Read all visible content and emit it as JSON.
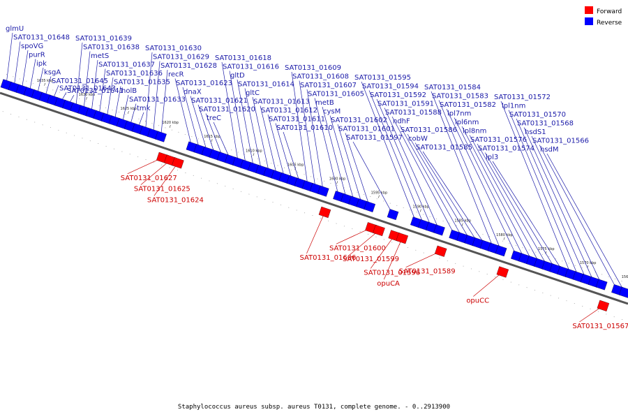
{
  "legend": {
    "forward_label": "Forward",
    "reverse_label": "Reverse",
    "forward_color": "#ff0000",
    "reverse_color": "#0000ff"
  },
  "caption": "Staphylococcus aureus subsp. aureus T0131, complete genome. - 0..2913900",
  "scale_ticks": [
    "1635 kbp",
    "1630 kbp",
    "1625 kbp",
    "1620 kbp",
    "1615 kbp",
    "1610 kbp",
    "1605 kbp",
    "1600 kbp",
    "1595 kbp",
    "1590 kbp",
    "1585 kbp",
    "1580 kbp",
    "1575 kbp",
    "1570 kbp",
    "1565 kbp"
  ],
  "genes": [
    {
      "label": "glmU",
      "strand": "reverse"
    },
    {
      "label": "SAT0131_01648",
      "strand": "reverse"
    },
    {
      "label": "spoVG",
      "strand": "reverse"
    },
    {
      "label": "purR",
      "strand": "reverse"
    },
    {
      "label": "ipk",
      "strand": "reverse"
    },
    {
      "label": "ksgA",
      "strand": "reverse"
    },
    {
      "label": "SAT0131_01645",
      "strand": "reverse"
    },
    {
      "label": "SAT0131_01643",
      "strand": "reverse"
    },
    {
      "label": "SAT0131_01641",
      "strand": "reverse"
    },
    {
      "label": "SAT0131_01639",
      "strand": "reverse"
    },
    {
      "label": "SAT0131_01638",
      "strand": "reverse"
    },
    {
      "label": "metS",
      "strand": "reverse"
    },
    {
      "label": "SAT0131_01637",
      "strand": "reverse"
    },
    {
      "label": "SAT0131_01636",
      "strand": "reverse"
    },
    {
      "label": "SAT0131_01635",
      "strand": "reverse"
    },
    {
      "label": "holB",
      "strand": "reverse"
    },
    {
      "label": "SAT0131_01633",
      "strand": "reverse"
    },
    {
      "label": "tmk",
      "strand": "reverse"
    },
    {
      "label": "SAT0131_01630",
      "strand": "reverse"
    },
    {
      "label": "SAT0131_01629",
      "strand": "reverse"
    },
    {
      "label": "SAT0131_01628",
      "strand": "reverse"
    },
    {
      "label": "SAT0131_01627",
      "strand": "forward"
    },
    {
      "label": "SAT0131_01625",
      "strand": "forward"
    },
    {
      "label": "SAT0131_01624",
      "strand": "forward"
    },
    {
      "label": "recR",
      "strand": "reverse"
    },
    {
      "label": "SAT0131_01623",
      "strand": "reverse"
    },
    {
      "label": "dnaX",
      "strand": "reverse"
    },
    {
      "label": "SAT0131_01621",
      "strand": "reverse"
    },
    {
      "label": "SAT0131_01620",
      "strand": "reverse"
    },
    {
      "label": "treC",
      "strand": "reverse"
    },
    {
      "label": "SAT0131_01618",
      "strand": "reverse"
    },
    {
      "label": "SAT0131_01616",
      "strand": "reverse"
    },
    {
      "label": "gltD",
      "strand": "reverse"
    },
    {
      "label": "SAT0131_01614",
      "strand": "reverse"
    },
    {
      "label": "gltC",
      "strand": "reverse"
    },
    {
      "label": "SAT0131_01613",
      "strand": "reverse"
    },
    {
      "label": "SAT0131_01612",
      "strand": "reverse"
    },
    {
      "label": "SAT0131_01611",
      "strand": "reverse"
    },
    {
      "label": "SAT0131_01610",
      "strand": "reverse"
    },
    {
      "label": "SAT0131_01609",
      "strand": "reverse"
    },
    {
      "label": "SAT0131_01608",
      "strand": "reverse"
    },
    {
      "label": "SAT0131_01607",
      "strand": "reverse"
    },
    {
      "label": "SAT0131_01606",
      "strand": "forward"
    },
    {
      "label": "SAT0131_01605",
      "strand": "reverse"
    },
    {
      "label": "metB",
      "strand": "reverse"
    },
    {
      "label": "cysM",
      "strand": "reverse"
    },
    {
      "label": "SAT0131_01602",
      "strand": "reverse"
    },
    {
      "label": "SAT0131_01601",
      "strand": "reverse"
    },
    {
      "label": "SAT0131_01600",
      "strand": "forward"
    },
    {
      "label": "SAT0131_01599",
      "strand": "forward"
    },
    {
      "label": "SAT0131_01597",
      "strand": "reverse"
    },
    {
      "label": "SAT0131_01596",
      "strand": "forward"
    },
    {
      "label": "opuCA",
      "strand": "forward"
    },
    {
      "label": "SAT0131_01595",
      "strand": "reverse"
    },
    {
      "label": "SAT0131_01594",
      "strand": "reverse"
    },
    {
      "label": "SAT0131_01592",
      "strand": "reverse"
    },
    {
      "label": "SAT0131_01591",
      "strand": "reverse"
    },
    {
      "label": "SAT0131_01589",
      "strand": "forward"
    },
    {
      "label": "SAT0131_01588",
      "strand": "reverse"
    },
    {
      "label": "ndhF",
      "strand": "reverse"
    },
    {
      "label": "SAT0131_01586",
      "strand": "reverse"
    },
    {
      "label": "cobW",
      "strand": "reverse"
    },
    {
      "label": "SAT0131_01585",
      "strand": "reverse"
    },
    {
      "label": "SAT0131_01584",
      "strand": "reverse"
    },
    {
      "label": "SAT0131_01583",
      "strand": "reverse"
    },
    {
      "label": "opuCC",
      "strand": "forward"
    },
    {
      "label": "SAT0131_01582",
      "strand": "reverse"
    },
    {
      "label": "lpl7nm",
      "strand": "reverse"
    },
    {
      "label": "lpl6nm",
      "strand": "reverse"
    },
    {
      "label": "lpl8nm",
      "strand": "reverse"
    },
    {
      "label": "SAT0131_01576",
      "strand": "reverse"
    },
    {
      "label": "SAT0131_01574",
      "strand": "reverse"
    },
    {
      "label": "lpl3",
      "strand": "reverse"
    },
    {
      "label": "SAT0131_01572",
      "strand": "reverse"
    },
    {
      "label": "lpl1nm",
      "strand": "reverse"
    },
    {
      "label": "SAT0131_01570",
      "strand": "reverse"
    },
    {
      "label": "SAT0131_01568",
      "strand": "reverse"
    },
    {
      "label": "hsdS1",
      "strand": "reverse"
    },
    {
      "label": "SAT0131_01567",
      "strand": "forward"
    },
    {
      "label": "SAT0131_01566",
      "strand": "reverse"
    },
    {
      "label": "hsdM",
      "strand": "reverse"
    }
  ]
}
